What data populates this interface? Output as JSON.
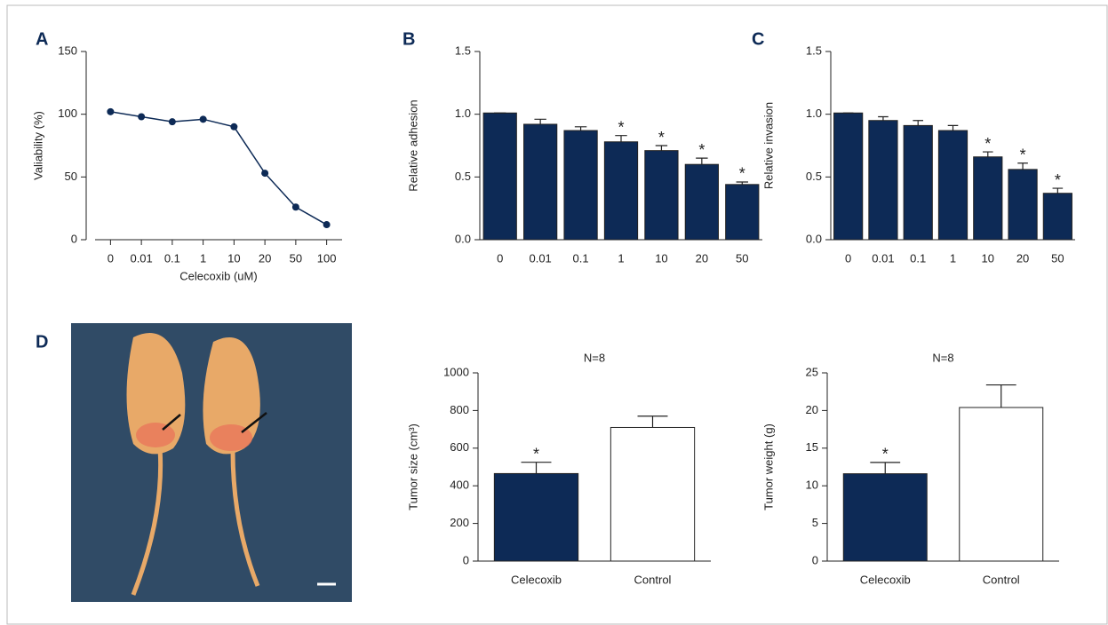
{
  "chart_data": [
    {
      "type": "line",
      "panel": "A",
      "x_label": "Celecoxib (uM)",
      "y_label": "Valiability (%)",
      "categories": [
        "0",
        "0.01",
        "0.1",
        "1",
        "10",
        "20",
        "50",
        "100"
      ],
      "values": [
        102,
        98,
        94,
        96,
        90,
        53,
        26,
        12
      ],
      "color": "#0d2a56",
      "ylim": [
        0,
        150
      ],
      "yticks": [
        0,
        50,
        100,
        150
      ]
    },
    {
      "type": "bar",
      "panel": "B",
      "y_label": "Relative adhesion",
      "categories": [
        "0",
        "0.01",
        "0.1",
        "1",
        "10",
        "20",
        "50"
      ],
      "values": [
        1.01,
        0.92,
        0.87,
        0.78,
        0.71,
        0.6,
        0.44
      ],
      "errors": [
        0,
        0.04,
        0.03,
        0.05,
        0.04,
        0.05,
        0.02
      ],
      "significance": [
        null,
        null,
        null,
        "*",
        "*",
        "*",
        "*"
      ],
      "color": "#0d2a56",
      "ylim": [
        0,
        1.5
      ],
      "yticks": [
        {
          "value": 0,
          "label": "0.0"
        },
        {
          "value": 0.5,
          "label": "0.5"
        },
        {
          "value": 1,
          "label": "1.0"
        },
        {
          "value": 1.5,
          "label": "1.5"
        }
      ]
    },
    {
      "type": "bar",
      "panel": "C",
      "y_label": "Relative invasion",
      "categories": [
        "0",
        "0.01",
        "0.1",
        "1",
        "10",
        "20",
        "50"
      ],
      "values": [
        1.01,
        0.95,
        0.91,
        0.87,
        0.66,
        0.56,
        0.37
      ],
      "errors": [
        0,
        0.03,
        0.04,
        0.04,
        0.04,
        0.05,
        0.04
      ],
      "significance": [
        null,
        null,
        null,
        null,
        "*",
        "*",
        "*"
      ],
      "color": "#0d2a56",
      "ylim": [
        0,
        1.5
      ],
      "yticks": [
        {
          "value": 0,
          "label": "0.0"
        },
        {
          "value": 0.5,
          "label": "0.5"
        },
        {
          "value": 1,
          "label": "1.0"
        },
        {
          "value": 1.5,
          "label": "1.5"
        }
      ]
    },
    {
      "type": "bar",
      "title": "N=8",
      "y_label": "Tumor size (cm³)",
      "categories": [
        "Celecoxib",
        "Control"
      ],
      "values": [
        465,
        710
      ],
      "errors": [
        60,
        60
      ],
      "significance": [
        "*",
        null
      ],
      "colors": [
        "#0d2a56",
        "#ffffff"
      ],
      "ylim": [
        0,
        1000
      ],
      "yticks": [
        0,
        200,
        400,
        600,
        800,
        1000
      ]
    },
    {
      "type": "bar",
      "title": "N=8",
      "y_label": "Tumor weight (g)",
      "categories": [
        "Celecoxib",
        "Control"
      ],
      "values": [
        11.6,
        20.4
      ],
      "errors": [
        1.5,
        3.0
      ],
      "significance": [
        "*",
        null
      ],
      "colors": [
        "#0d2a56",
        "#ffffff"
      ],
      "ylim": [
        0,
        25
      ],
      "yticks": [
        0,
        5,
        10,
        15,
        20,
        25
      ]
    }
  ],
  "photo": {
    "panel": "D"
  }
}
